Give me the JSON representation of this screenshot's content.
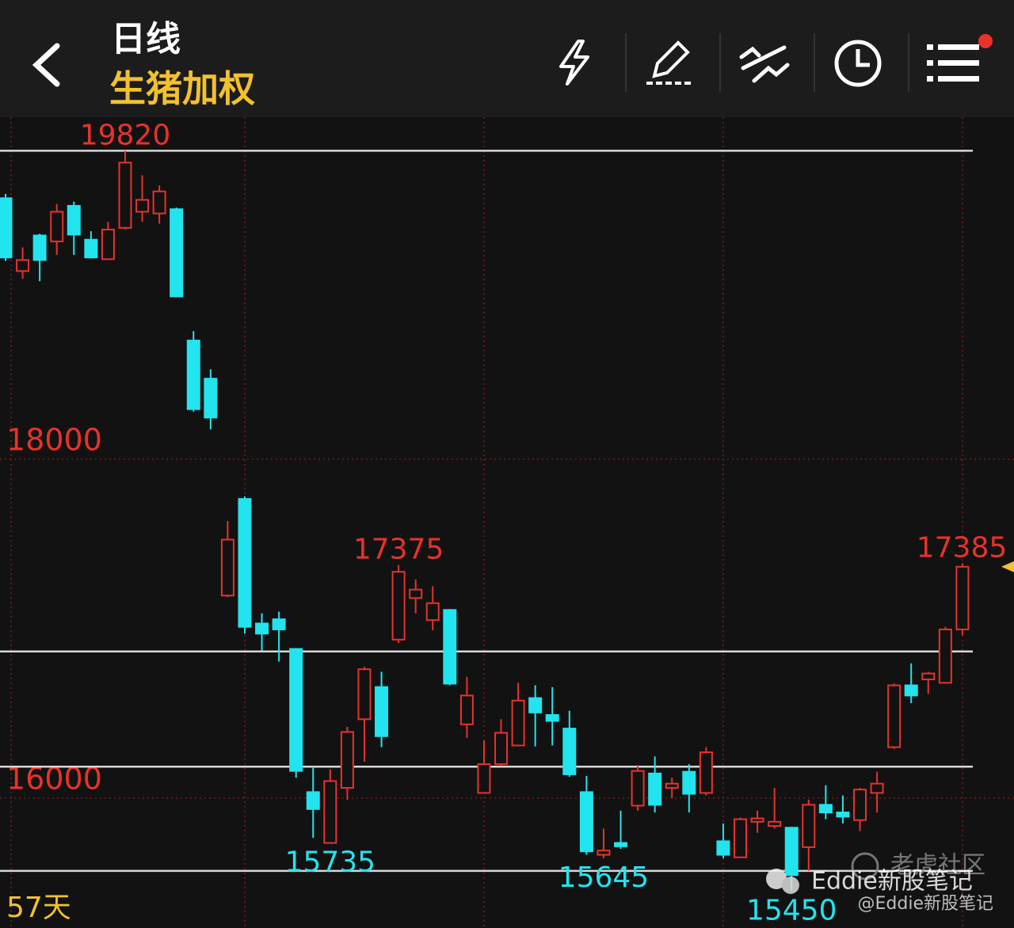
{
  "header": {
    "title": "日线",
    "subtitle": "生猪加权"
  },
  "chart_data": {
    "type": "candlestick",
    "period_label": "57天",
    "up_color": "#e8322b",
    "down_color": "#22e4ee",
    "ylim": [
      15233,
      20018
    ],
    "yticks": [
      18000,
      16000
    ],
    "grid": true,
    "hlines": [
      19820,
      16865,
      16185,
      15570
    ],
    "high_labels": [
      7,
      23,
      56
    ],
    "low_labels": [
      19,
      46,
      35
    ],
    "open": [
      19540,
      19110,
      19320,
      19285,
      19495,
      19295,
      19180,
      19365,
      19460,
      19450,
      19475,
      18700,
      18475,
      17195,
      17765,
      17030,
      17055,
      16880,
      16035,
      15735,
      16060,
      16465,
      16655,
      16935,
      17180,
      17050,
      17110,
      16435,
      16030,
      16200,
      16310,
      16590,
      16490,
      16410,
      16035,
      15665,
      15735,
      15955,
      16145,
      16060,
      16155,
      16030,
      15745,
      15650,
      15860,
      15835,
      15825,
      15710,
      15960,
      15915,
      15870,
      16030,
      16300,
      16665,
      16700,
      16680,
      16995
    ],
    "high": [
      19565,
      19250,
      19330,
      19505,
      19520,
      19345,
      19400,
      19820,
      19675,
      19615,
      19485,
      18755,
      18530,
      17635,
      17780,
      17090,
      17100,
      16885,
      16185,
      16170,
      16420,
      16775,
      16745,
      17375,
      17290,
      17250,
      17115,
      16715,
      16340,
      16465,
      16680,
      16665,
      16655,
      16515,
      16130,
      15820,
      15925,
      16195,
      16245,
      16120,
      16200,
      16300,
      15850,
      15885,
      15925,
      16060,
      15830,
      15990,
      16075,
      16015,
      16060,
      16155,
      16675,
      16795,
      16745,
      17010,
      17385
    ],
    "low": [
      19170,
      19065,
      19050,
      19205,
      19205,
      19185,
      19175,
      19355,
      19400,
      19390,
      18955,
      18280,
      18175,
      17185,
      16970,
      16870,
      16805,
      16120,
      15765,
      15735,
      15990,
      16215,
      16300,
      16915,
      17090,
      16990,
      16665,
      16355,
      16030,
      16190,
      16310,
      16305,
      16310,
      16125,
      15665,
      15645,
      15700,
      15925,
      15915,
      16000,
      15915,
      16015,
      15645,
      15650,
      15795,
      15820,
      15450,
      15570,
      15875,
      15850,
      15805,
      15915,
      16290,
      16560,
      16615,
      16675,
      16960
    ],
    "close": [
      19190,
      19175,
      19175,
      19460,
      19325,
      19190,
      19355,
      19750,
      19530,
      19580,
      18960,
      18295,
      18245,
      17525,
      17010,
      16970,
      16995,
      16160,
      15935,
      16100,
      16390,
      16760,
      16365,
      17335,
      17230,
      17150,
      16675,
      16605,
      16200,
      16385,
      16575,
      16505,
      16455,
      16140,
      15685,
      15690,
      15715,
      16160,
      15960,
      16085,
      16025,
      16270,
      15665,
      15875,
      15880,
      15860,
      15545,
      15960,
      15915,
      15890,
      16050,
      16085,
      16665,
      16605,
      16735,
      16995,
      17365
    ]
  },
  "watermark": {
    "community": "老虎社区",
    "account": "Eddie新股笔记",
    "handle": "@Eddie新股笔记"
  }
}
